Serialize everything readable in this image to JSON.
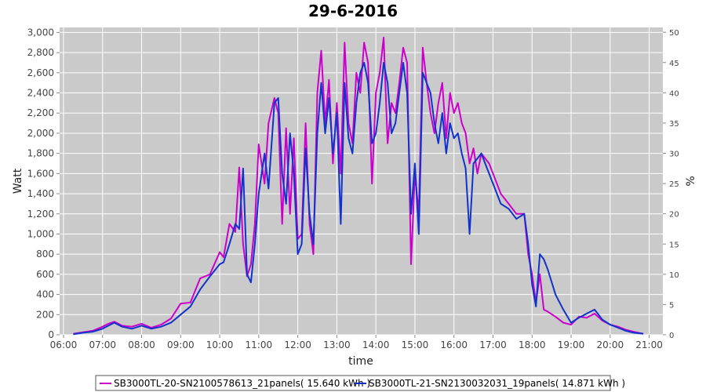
{
  "chart_data": {
    "type": "line",
    "title": "29-6-2016",
    "xlabel": "time",
    "ylabel": "Watt",
    "y2label": "%",
    "x_ticks": [
      "06:00",
      "07:00",
      "08:00",
      "09:00",
      "10:00",
      "11:00",
      "12:00",
      "13:00",
      "14:00",
      "15:00",
      "16:00",
      "17:00",
      "18:00",
      "19:00",
      "20:00",
      "21:00"
    ],
    "xlim_hours": [
      5.9,
      21.35
    ],
    "ylim": [
      0,
      3050
    ],
    "y_ticks": [
      0,
      200,
      400,
      600,
      800,
      1000,
      1200,
      1400,
      1600,
      1800,
      2000,
      2200,
      2400,
      2600,
      2800,
      3000
    ],
    "y_tick_labels": [
      "0",
      "200",
      "400",
      "600",
      "800",
      "1,000",
      "1,200",
      "1,400",
      "1,600",
      "1,800",
      "2,000",
      "2,200",
      "2,400",
      "2,600",
      "2,800",
      "3,000"
    ],
    "y2lim": [
      0,
      50.8
    ],
    "y2_ticks": [
      0,
      5,
      10,
      15,
      20,
      25,
      30,
      35,
      40,
      45,
      50
    ],
    "y2_tick_labels": [
      "0",
      "5",
      "10",
      "15",
      "20",
      "25",
      "30",
      "35",
      "40",
      "45",
      "50"
    ],
    "grid": true,
    "legend_position": "bottom",
    "series": [
      {
        "name": "SB3000TL-20-SN2100578613_21panels( 15.640 kWh )",
        "color": "#cc00cc",
        "x": [
          6.25,
          6.5,
          6.75,
          7.0,
          7.15,
          7.3,
          7.5,
          7.75,
          8.0,
          8.25,
          8.5,
          8.75,
          9.0,
          9.25,
          9.5,
          9.75,
          10.0,
          10.1,
          10.25,
          10.4,
          10.5,
          10.6,
          10.7,
          10.8,
          10.9,
          11.0,
          11.15,
          11.25,
          11.4,
          11.5,
          11.6,
          11.7,
          11.8,
          11.9,
          12.0,
          12.1,
          12.2,
          12.3,
          12.4,
          12.5,
          12.6,
          12.7,
          12.8,
          12.9,
          13.0,
          13.1,
          13.2,
          13.3,
          13.4,
          13.5,
          13.6,
          13.7,
          13.8,
          13.9,
          14.0,
          14.1,
          14.2,
          14.3,
          14.4,
          14.5,
          14.6,
          14.7,
          14.8,
          14.9,
          15.0,
          15.1,
          15.2,
          15.3,
          15.4,
          15.5,
          15.6,
          15.7,
          15.8,
          15.9,
          16.0,
          16.1,
          16.2,
          16.3,
          16.4,
          16.5,
          16.6,
          16.7,
          16.8,
          16.9,
          17.0,
          17.2,
          17.4,
          17.6,
          17.8,
          17.9,
          18.0,
          18.1,
          18.2,
          18.3,
          18.4,
          18.6,
          18.8,
          19.0,
          19.2,
          19.4,
          19.6,
          19.8,
          20.0,
          20.2,
          20.4,
          20.6,
          20.85
        ],
        "y": [
          10,
          25,
          40,
          80,
          110,
          130,
          90,
          80,
          110,
          70,
          100,
          160,
          310,
          320,
          560,
          600,
          820,
          770,
          1100,
          1020,
          1660,
          900,
          580,
          700,
          1100,
          1890,
          1500,
          2100,
          2350,
          2200,
          1100,
          2050,
          1200,
          1950,
          950,
          1000,
          2100,
          1100,
          800,
          2400,
          2820,
          2100,
          2530,
          1700,
          2300,
          1600,
          2900,
          2100,
          1900,
          2600,
          2400,
          2900,
          2700,
          1500,
          2400,
          2600,
          2950,
          1900,
          2300,
          2200,
          2500,
          2850,
          2700,
          700,
          1600,
          1200,
          2850,
          2500,
          2200,
          2000,
          2300,
          2500,
          1950,
          2400,
          2200,
          2300,
          2100,
          2000,
          1700,
          1850,
          1600,
          1800,
          1750,
          1700,
          1600,
          1400,
          1300,
          1200,
          1200,
          800,
          600,
          320,
          600,
          250,
          230,
          180,
          120,
          100,
          180,
          170,
          210,
          140,
          100,
          80,
          50,
          30,
          10
        ]
      },
      {
        "name": "SB3000TL-21-SN2130032031_19panels( 14.871 kWh )",
        "color": "#1133cc",
        "x": [
          6.25,
          6.5,
          6.75,
          7.0,
          7.15,
          7.3,
          7.5,
          7.75,
          8.0,
          8.25,
          8.5,
          8.75,
          9.0,
          9.25,
          9.5,
          9.75,
          10.0,
          10.1,
          10.25,
          10.4,
          10.5,
          10.6,
          10.7,
          10.8,
          10.9,
          11.0,
          11.15,
          11.25,
          11.4,
          11.5,
          11.6,
          11.7,
          11.8,
          11.9,
          12.0,
          12.1,
          12.2,
          12.3,
          12.4,
          12.5,
          12.6,
          12.7,
          12.8,
          12.9,
          13.0,
          13.1,
          13.2,
          13.3,
          13.4,
          13.5,
          13.6,
          13.7,
          13.8,
          13.9,
          14.0,
          14.1,
          14.2,
          14.3,
          14.4,
          14.5,
          14.6,
          14.7,
          14.8,
          14.9,
          15.0,
          15.1,
          15.2,
          15.3,
          15.4,
          15.5,
          15.6,
          15.7,
          15.8,
          15.9,
          16.0,
          16.1,
          16.2,
          16.3,
          16.4,
          16.5,
          16.6,
          16.7,
          16.8,
          16.9,
          17.0,
          17.2,
          17.4,
          17.6,
          17.8,
          17.9,
          18.0,
          18.1,
          18.2,
          18.3,
          18.4,
          18.6,
          18.8,
          19.0,
          19.2,
          19.4,
          19.6,
          19.8,
          20.0,
          20.2,
          20.4,
          20.6,
          20.85
        ],
        "y": [
          5,
          20,
          30,
          60,
          90,
          120,
          80,
          60,
          90,
          60,
          80,
          120,
          200,
          280,
          450,
          580,
          700,
          720,
          900,
          1100,
          1050,
          1650,
          600,
          520,
          900,
          1400,
          1800,
          1450,
          2300,
          2350,
          1600,
          1300,
          2000,
          1600,
          800,
          900,
          1850,
          1200,
          900,
          2000,
          2500,
          2000,
          2350,
          1800,
          2200,
          1100,
          2500,
          1950,
          1800,
          2300,
          2600,
          2700,
          2500,
          1900,
          2000,
          2300,
          2700,
          2500,
          2000,
          2100,
          2400,
          2700,
          2400,
          1200,
          1700,
          1000,
          2600,
          2500,
          2400,
          2100,
          1900,
          2200,
          1800,
          2100,
          1950,
          2000,
          1800,
          1650,
          1000,
          1700,
          1750,
          1800,
          1700,
          1600,
          1500,
          1300,
          1250,
          1150,
          1200,
          900,
          500,
          280,
          800,
          750,
          650,
          400,
          250,
          120,
          170,
          210,
          250,
          150,
          100,
          70,
          40,
          20,
          10
        ]
      }
    ]
  }
}
